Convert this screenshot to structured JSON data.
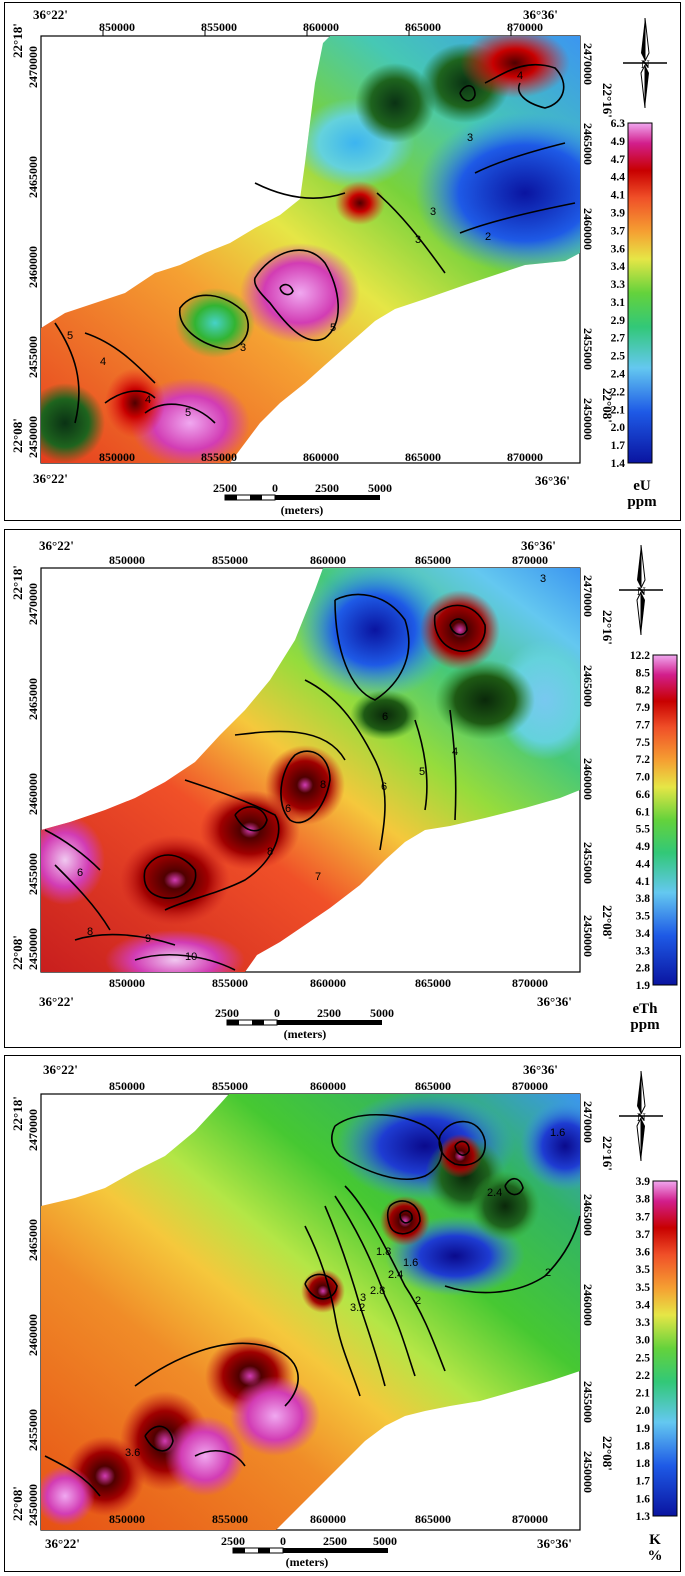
{
  "common": {
    "corner_nw": "36°22'",
    "corner_ne": "36°36'",
    "corner_sw": "36°22'",
    "corner_se": "36°36'",
    "lat_top": "22°18'",
    "lat_right_top": "22°16'",
    "lat_bottom": "22°08'",
    "lat_right_bottom": "22°08'",
    "x_ticks": [
      "850000",
      "855000",
      "860000",
      "865000",
      "870000"
    ],
    "y_ticks": [
      "2470000",
      "2465000",
      "2460000",
      "2455000",
      "2450000"
    ],
    "scale_labels": [
      "2500",
      "0",
      "2500",
      "5000"
    ],
    "scale_unit": "(meters)",
    "north_label": "N"
  },
  "panels": [
    {
      "name": "eu",
      "unit_top": "eU",
      "unit_bottom": "ppm",
      "colorbar": [
        "6.3",
        "4.9",
        "4.7",
        "4.4",
        "4.1",
        "3.9",
        "3.7",
        "3.6",
        "3.4",
        "3.3",
        "3.1",
        "2.9",
        "2.7",
        "2.5",
        "2.4",
        "2.2",
        "2.1",
        "2.0",
        "1.7",
        "1.4"
      ],
      "contour_labels": [
        "4",
        "3",
        "3",
        "2",
        "3",
        "5",
        "3",
        "5",
        "4",
        "4",
        "5"
      ]
    },
    {
      "name": "eth",
      "unit_top": "eTh",
      "unit_bottom": "ppm",
      "colorbar": [
        "12.2",
        "8.5",
        "8.2",
        "7.9",
        "7.7",
        "7.5",
        "7.2",
        "7.0",
        "6.6",
        "6.1",
        "5.5",
        "4.9",
        "4.4",
        "4.1",
        "3.8",
        "3.5",
        "3.4",
        "3.3",
        "2.8",
        "1.9"
      ],
      "contour_labels": [
        "3",
        "6",
        "4",
        "5",
        "6",
        "8",
        "6",
        "8",
        "7",
        "6",
        "8",
        "9",
        "10"
      ]
    },
    {
      "name": "k",
      "unit_top": "K",
      "unit_bottom": "%",
      "colorbar": [
        "3.9",
        "3.8",
        "3.7",
        "3.7",
        "3.6",
        "3.5",
        "3.5",
        "3.4",
        "3.3",
        "3.0",
        "2.5",
        "2.2",
        "2.1",
        "2.0",
        "1.9",
        "1.8",
        "1.8",
        "1.7",
        "1.6",
        "1.3"
      ],
      "contour_labels": [
        "1.6",
        "2.4",
        "1.8",
        "1.6",
        "3.2",
        "3",
        "2.8",
        "2.4",
        "2",
        "2",
        "3.6"
      ]
    }
  ],
  "colors": {
    "colorbar_ramp": [
      "#f0a8f0",
      "#d21e8c",
      "#c80000",
      "#e61e1e",
      "#f05028",
      "#f57828",
      "#f5a032",
      "#f5c83c",
      "#e6e646",
      "#b4e646",
      "#64d23c",
      "#32c832",
      "#32c878",
      "#46d2c8",
      "#64c8f0",
      "#3c96f0",
      "#1e5ae6",
      "#0f2dc8",
      "#0a14a0"
    ]
  }
}
